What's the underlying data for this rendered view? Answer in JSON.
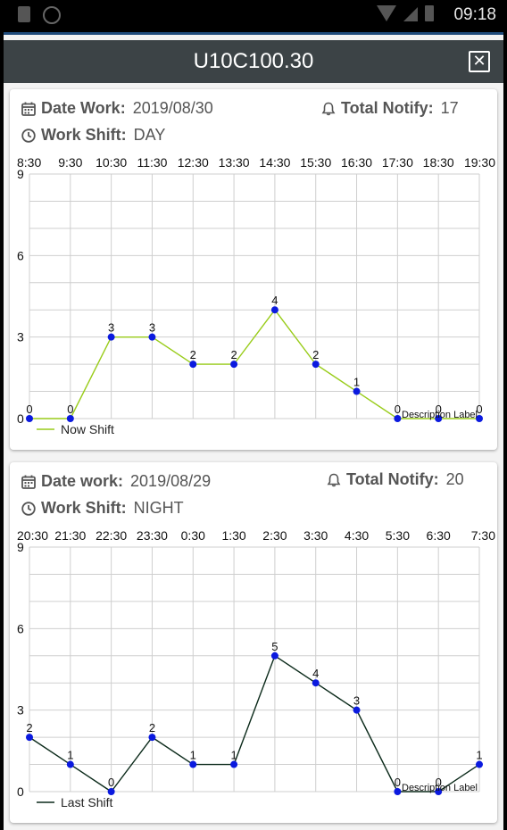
{
  "status_bar": {
    "time": "09:18"
  },
  "dialog": {
    "title": "U10C100.30"
  },
  "cards": [
    {
      "date_label": "Date Work:",
      "date_value": "2019/08/30",
      "notify_label": "Total Notify:",
      "notify_value": "17",
      "shift_label": "Work Shift:",
      "shift_value": "DAY"
    },
    {
      "date_label": "Date work:",
      "date_value": "2019/08/29",
      "notify_label": "Total Notify:",
      "notify_value": "20",
      "shift_label": "Work Shift:",
      "shift_value": "NIGHT"
    }
  ],
  "chart_data": [
    {
      "type": "line",
      "categories": [
        "8:30",
        "9:30",
        "10:30",
        "11:30",
        "12:30",
        "13:30",
        "14:30",
        "15:30",
        "16:30",
        "17:30",
        "18:30",
        "19:30"
      ],
      "series": [
        {
          "name": "Now Shift",
          "values": [
            0,
            0,
            3,
            3,
            2,
            2,
            4,
            2,
            1,
            0,
            0,
            0
          ],
          "color": "#99cc1a"
        }
      ],
      "y_ticks": [
        0,
        3,
        6,
        9
      ],
      "ylim": [
        0,
        9
      ],
      "description": "Description Label",
      "grid": true,
      "legend": "bottom-left",
      "point_color": "#0b1adf"
    },
    {
      "type": "line",
      "categories": [
        "20:30",
        "21:30",
        "22:30",
        "23:30",
        "0:30",
        "1:30",
        "2:30",
        "3:30",
        "4:30",
        "5:30",
        "6:30",
        "7:30"
      ],
      "series": [
        {
          "name": "Last Shift",
          "values": [
            2,
            1,
            0,
            2,
            1,
            1,
            5,
            4,
            3,
            0,
            0,
            1
          ],
          "color": "#0b2a1a"
        }
      ],
      "y_ticks": [
        0,
        3,
        6,
        9
      ],
      "ylim": [
        0,
        9
      ],
      "description": "Description Label",
      "grid": true,
      "legend": "bottom-left",
      "point_color": "#0b1adf"
    }
  ]
}
